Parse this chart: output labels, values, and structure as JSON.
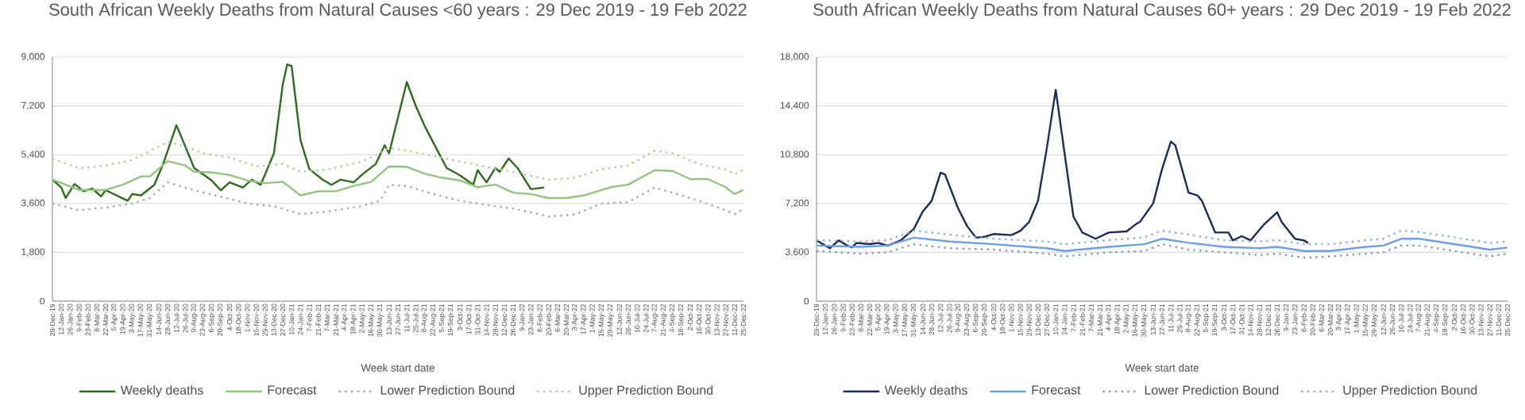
{
  "chart_data": [
    {
      "type": "line",
      "title": "South African Weekly Deaths from Natural Causes  <60 years : 29 Dec 2019 - 19 Feb 2022",
      "xlabel": "Week start date",
      "xlim": [
        "2019-12-29",
        "2022-12-25"
      ],
      "ylim": [
        0,
        9000
      ],
      "yticks": [
        0,
        {
          "value": 1800,
          "label": "1,800"
        },
        {
          "value": 3600,
          "label": "3,600"
        },
        {
          "value": 5400,
          "label": "5,400"
        },
        {
          "value": 7200,
          "label": "7,200"
        },
        {
          "value": 9000,
          "label": "9,000"
        }
      ],
      "xticks": [
        {
          "value": "2019-12-29",
          "label": "29-Dec-19"
        },
        {
          "value": "2020-01-12",
          "label": "12-Jan-20"
        },
        {
          "value": "2020-01-26",
          "label": "26-Jan-20"
        },
        {
          "value": "2020-02-09",
          "label": "9-Feb-20"
        },
        {
          "value": "2020-02-23",
          "label": "23-Feb-20"
        },
        {
          "value": "2020-03-08",
          "label": "8-Mar-20"
        },
        {
          "value": "2020-03-22",
          "label": "22-Mar-20"
        },
        {
          "value": "2020-04-05",
          "label": "5-Apr-20"
        },
        {
          "value": "2020-04-19",
          "label": "19-Apr-20"
        },
        {
          "value": "2020-05-03",
          "label": "3-May-20"
        },
        {
          "value": "2020-05-17",
          "label": "17-May-20"
        },
        {
          "value": "2020-05-31",
          "label": "31-May-20"
        },
        {
          "value": "2020-06-14",
          "label": "14-Jun-20"
        },
        {
          "value": "2020-06-28",
          "label": "28-Jun-20"
        },
        {
          "value": "2020-07-12",
          "label": "12-Jul-20"
        },
        {
          "value": "2020-07-26",
          "label": "26-Jul-20"
        },
        {
          "value": "2020-08-09",
          "label": "9-Aug-20"
        },
        {
          "value": "2020-08-23",
          "label": "23-Aug-20"
        },
        {
          "value": "2020-09-06",
          "label": "6-Sep-20"
        },
        {
          "value": "2020-09-20",
          "label": "20-Sep-20"
        },
        {
          "value": "2020-10-04",
          "label": "4-Oct-20"
        },
        {
          "value": "2020-10-18",
          "label": "18-Oct-20"
        },
        {
          "value": "2020-11-01",
          "label": "1-Nov-20"
        },
        {
          "value": "2020-11-15",
          "label": "15-Nov-20"
        },
        {
          "value": "2020-11-29",
          "label": "29-Nov-20"
        },
        {
          "value": "2020-12-13",
          "label": "13-Dec-20"
        },
        {
          "value": "2020-12-27",
          "label": "27-Dec-20"
        },
        {
          "value": "2021-01-10",
          "label": "10-Jan-21"
        },
        {
          "value": "2021-01-24",
          "label": "24-Jan-21"
        },
        {
          "value": "2021-02-07",
          "label": "7-Feb-21"
        },
        {
          "value": "2021-02-21",
          "label": "21-Feb-21"
        },
        {
          "value": "2021-03-07",
          "label": "7-Mar-21"
        },
        {
          "value": "2021-03-21",
          "label": "21-Mar-21"
        },
        {
          "value": "2021-04-04",
          "label": "4-Apr-21"
        },
        {
          "value": "2021-04-18",
          "label": "18-Apr-21"
        },
        {
          "value": "2021-05-02",
          "label": "2-May-21"
        },
        {
          "value": "2021-05-16",
          "label": "16-May-21"
        },
        {
          "value": "2021-05-30",
          "label": "30-May-21"
        },
        {
          "value": "2021-06-13",
          "label": "13-Jun-21"
        },
        {
          "value": "2021-06-27",
          "label": "27-Jun-21"
        },
        {
          "value": "2021-07-11",
          "label": "11-Jul-21"
        },
        {
          "value": "2021-07-25",
          "label": "25-Jul-21"
        },
        {
          "value": "2021-08-08",
          "label": "8-Aug-21"
        },
        {
          "value": "2021-08-22",
          "label": "22-Aug-21"
        },
        {
          "value": "2021-09-05",
          "label": "5-Sep-21"
        },
        {
          "value": "2021-09-19",
          "label": "19-Sep-21"
        },
        {
          "value": "2021-10-03",
          "label": "3-Oct-21"
        },
        {
          "value": "2021-10-17",
          "label": "17-Oct-21"
        },
        {
          "value": "2021-10-31",
          "label": "31-Oct-21"
        },
        {
          "value": "2021-11-14",
          "label": "14-Nov-21"
        },
        {
          "value": "2021-11-28",
          "label": "28-Nov-21"
        },
        {
          "value": "2021-12-12",
          "label": "12-Dec-21"
        },
        {
          "value": "2021-12-26",
          "label": "26-Dec-21"
        },
        {
          "value": "2022-01-09",
          "label": "9-Jan-22"
        },
        {
          "value": "2022-01-23",
          "label": "23-Jan-22"
        },
        {
          "value": "2022-02-06",
          "label": "6-Feb-22"
        },
        {
          "value": "2022-02-20",
          "label": "20-Feb-22"
        },
        {
          "value": "2022-03-06",
          "label": "6-Mar-22"
        },
        {
          "value": "2022-03-20",
          "label": "20-Mar-22"
        },
        {
          "value": "2022-04-03",
          "label": "3-Apr-22"
        },
        {
          "value": "2022-04-17",
          "label": "17-Apr-22"
        },
        {
          "value": "2022-05-01",
          "label": "1-May-22"
        },
        {
          "value": "2022-05-15",
          "label": "15-May-22"
        },
        {
          "value": "2022-05-29",
          "label": "29-May-22"
        },
        {
          "value": "2022-06-12",
          "label": "12-Jun-22"
        },
        {
          "value": "2022-06-26",
          "label": "26-Jun-22"
        },
        {
          "value": "2022-07-10",
          "label": "10-Jul-22"
        },
        {
          "value": "2022-07-24",
          "label": "24-Jul-22"
        },
        {
          "value": "2022-08-07",
          "label": "7-Aug-22"
        },
        {
          "value": "2022-08-21",
          "label": "21-Aug-22"
        },
        {
          "value": "2022-09-04",
          "label": "4-Sep-22"
        },
        {
          "value": "2022-09-18",
          "label": "18-Sep-22"
        },
        {
          "value": "2022-10-02",
          "label": "2-Oct-22"
        },
        {
          "value": "2022-10-16",
          "label": "16-Oct-22"
        },
        {
          "value": "2022-10-30",
          "label": "30-Oct-22"
        },
        {
          "value": "2022-11-13",
          "label": "13-Nov-22"
        },
        {
          "value": "2022-11-27",
          "label": "27-Nov-22"
        },
        {
          "value": "2022-12-11",
          "label": "11-Dec-22"
        },
        {
          "value": "2022-12-25",
          "label": "25-Dec-22"
        }
      ],
      "grid": "y",
      "legend": "bottom",
      "marker": "none",
      "series": [
        {
          "name": "Weekly deaths",
          "color": "#2e6b1f",
          "line_style": "solid",
          "x": [
            "2019-12-29",
            "2020-01-12",
            "2020-01-19",
            "2020-02-02",
            "2020-02-16",
            "2020-03-01",
            "2020-03-15",
            "2020-03-22",
            "2020-04-26",
            "2020-05-03",
            "2020-05-17",
            "2020-06-07",
            "2020-06-21",
            "2020-07-12",
            "2020-08-09",
            "2020-09-06",
            "2020-09-20",
            "2020-10-04",
            "2020-10-25",
            "2020-11-08",
            "2020-11-22",
            "2020-12-06",
            "2020-12-13",
            "2020-12-27",
            "2021-01-03",
            "2021-01-10",
            "2021-01-24",
            "2021-02-07",
            "2021-02-28",
            "2021-03-14",
            "2021-03-28",
            "2021-04-18",
            "2021-05-02",
            "2021-05-23",
            "2021-06-06",
            "2021-06-13",
            "2021-07-11",
            "2021-07-25",
            "2021-08-08",
            "2021-08-22",
            "2021-09-12",
            "2021-10-03",
            "2021-10-24",
            "2021-10-31",
            "2021-11-14",
            "2021-11-28",
            "2021-12-05",
            "2021-12-19",
            "2022-01-02",
            "2022-01-23",
            "2022-02-13"
          ],
          "values": [
            4480,
            4190,
            3800,
            4320,
            4050,
            4150,
            3860,
            4090,
            3700,
            3950,
            3900,
            4290,
            5060,
            6490,
            4910,
            4440,
            4090,
            4380,
            4190,
            4480,
            4290,
            5060,
            5450,
            7990,
            8730,
            8670,
            5940,
            4870,
            4480,
            4290,
            4480,
            4380,
            4680,
            5060,
            5750,
            5450,
            8080,
            7210,
            6470,
            5840,
            4910,
            4640,
            4290,
            4830,
            4380,
            4910,
            4770,
            5260,
            4910,
            4130,
            4190
          ]
        },
        {
          "name": "Forecast",
          "color": "#93c47d",
          "line_style": "solid",
          "x": [
            "2019-12-29",
            "2020-02-09",
            "2020-03-22",
            "2020-04-19",
            "2020-05-17",
            "2020-05-31",
            "2020-06-28",
            "2020-07-26",
            "2020-08-09",
            "2020-09-06",
            "2020-10-04",
            "2020-11-01",
            "2020-11-29",
            "2020-12-27",
            "2021-01-24",
            "2021-02-21",
            "2021-03-21",
            "2021-04-18",
            "2021-05-16",
            "2021-06-13",
            "2021-07-11",
            "2021-08-08",
            "2021-09-05",
            "2021-10-03",
            "2021-10-31",
            "2021-11-28",
            "2021-12-26",
            "2022-01-23",
            "2022-02-20",
            "2022-03-20",
            "2022-04-17",
            "2022-05-29",
            "2022-06-26",
            "2022-08-07",
            "2022-09-04",
            "2022-10-02",
            "2022-10-30",
            "2022-11-27",
            "2022-12-11",
            "2022-12-25"
          ],
          "values": [
            4480,
            4100,
            4100,
            4300,
            4600,
            4600,
            5160,
            5000,
            4770,
            4750,
            4650,
            4450,
            4350,
            4400,
            3900,
            4050,
            4050,
            4250,
            4400,
            4970,
            4950,
            4700,
            4550,
            4450,
            4200,
            4300,
            4000,
            3950,
            3800,
            3800,
            3900,
            4200,
            4300,
            4830,
            4800,
            4500,
            4500,
            4200,
            3950,
            4100
          ]
        },
        {
          "name": "Lower Prediction Bound",
          "color": "#a6a6a6",
          "line_style": "dotted",
          "x": [
            "2019-12-29",
            "2020-02-09",
            "2020-03-22",
            "2020-05-03",
            "2020-05-31",
            "2020-06-28",
            "2020-08-09",
            "2020-09-20",
            "2020-11-01",
            "2020-12-13",
            "2021-01-24",
            "2021-03-07",
            "2021-05-02",
            "2021-05-30",
            "2021-06-13",
            "2021-07-11",
            "2021-08-22",
            "2021-10-03",
            "2021-11-14",
            "2021-12-26",
            "2022-02-06",
            "2022-02-20",
            "2022-04-03",
            "2022-05-15",
            "2022-06-26",
            "2022-08-07",
            "2022-09-04",
            "2022-10-16",
            "2022-11-27",
            "2022-12-11",
            "2022-12-25"
          ],
          "values": [
            3600,
            3350,
            3450,
            3600,
            3800,
            4380,
            4090,
            3850,
            3600,
            3500,
            3210,
            3300,
            3510,
            3700,
            4290,
            4250,
            3950,
            3700,
            3550,
            3410,
            3200,
            3120,
            3200,
            3600,
            3650,
            4190,
            4000,
            3700,
            3350,
            3210,
            3410
          ]
        },
        {
          "name": "Upper Prediction Bound",
          "color": "#a9d18e",
          "line_style": "dotted",
          "x": [
            "2019-12-29",
            "2020-02-09",
            "2020-03-22",
            "2020-05-03",
            "2020-06-14",
            "2020-06-28",
            "2020-07-26",
            "2020-08-23",
            "2020-10-04",
            "2020-11-15",
            "2020-12-27",
            "2021-01-24",
            "2021-03-07",
            "2021-05-02",
            "2021-05-30",
            "2021-06-13",
            "2021-07-11",
            "2021-08-22",
            "2021-10-03",
            "2021-11-14",
            "2021-12-26",
            "2022-02-06",
            "2022-02-20",
            "2022-04-03",
            "2022-05-15",
            "2022-06-26",
            "2022-08-07",
            "2022-09-04",
            "2022-10-16",
            "2022-11-27",
            "2022-12-11",
            "2022-12-25"
          ],
          "values": [
            5260,
            4900,
            5000,
            5200,
            5700,
            5880,
            5700,
            5450,
            5300,
            4970,
            5060,
            4770,
            4850,
            5150,
            5450,
            5650,
            5550,
            5350,
            5150,
            4950,
            4770,
            4550,
            4480,
            4550,
            4870,
            5000,
            5550,
            5450,
            5060,
            4850,
            4680,
            4830
          ]
        }
      ]
    },
    {
      "type": "line",
      "title": "South African Weekly Deaths from Natural Causes 60+ years : 29 Dec 2019 -  19 Feb 2022",
      "xlabel": "Week start date",
      "xlim": [
        "2019-12-29",
        "2022-12-25"
      ],
      "ylim": [
        0,
        18000
      ],
      "yticks": [
        0,
        {
          "value": 3600,
          "label": "3,600"
        },
        {
          "value": 7200,
          "label": "7,200"
        },
        {
          "value": 10800,
          "label": "10,800"
        },
        {
          "value": 14400,
          "label": "14,400"
        },
        {
          "value": 18000,
          "label": "18,000"
        }
      ],
      "xticks": [
        {
          "value": "2019-12-29",
          "label": "29-Dec-19"
        },
        {
          "value": "2020-01-12",
          "label": "12-Jan-20"
        },
        {
          "value": "2020-01-26",
          "label": "26-Jan-20"
        },
        {
          "value": "2020-02-09",
          "label": "9-Feb-20"
        },
        {
          "value": "2020-02-23",
          "label": "23-Feb-20"
        },
        {
          "value": "2020-03-08",
          "label": "8-Mar-20"
        },
        {
          "value": "2020-03-22",
          "label": "22-Mar-20"
        },
        {
          "value": "2020-04-05",
          "label": "5-Apr-20"
        },
        {
          "value": "2020-04-19",
          "label": "19-Apr-20"
        },
        {
          "value": "2020-05-03",
          "label": "3-May-20"
        },
        {
          "value": "2020-05-17",
          "label": "17-May-20"
        },
        {
          "value": "2020-05-31",
          "label": "31-May-20"
        },
        {
          "value": "2020-06-14",
          "label": "14-Jun-20"
        },
        {
          "value": "2020-06-28",
          "label": "28-Jun-20"
        },
        {
          "value": "2020-07-12",
          "label": "12-Jul-20"
        },
        {
          "value": "2020-07-26",
          "label": "26-Jul-20"
        },
        {
          "value": "2020-08-09",
          "label": "9-Aug-20"
        },
        {
          "value": "2020-08-23",
          "label": "23-Aug-20"
        },
        {
          "value": "2020-09-06",
          "label": "6-Sep-20"
        },
        {
          "value": "2020-09-20",
          "label": "20-Sep-20"
        },
        {
          "value": "2020-10-04",
          "label": "4-Oct-20"
        },
        {
          "value": "2020-10-18",
          "label": "18-Oct-20"
        },
        {
          "value": "2020-11-01",
          "label": "1-Nov-20"
        },
        {
          "value": "2020-11-15",
          "label": "15-Nov-20"
        },
        {
          "value": "2020-11-29",
          "label": "29-Nov-20"
        },
        {
          "value": "2020-12-13",
          "label": "13-Dec-20"
        },
        {
          "value": "2020-12-27",
          "label": "27-Dec-20"
        },
        {
          "value": "2021-01-10",
          "label": "10-Jan-21"
        },
        {
          "value": "2021-01-24",
          "label": "24-Jan-21"
        },
        {
          "value": "2021-02-07",
          "label": "7-Feb-21"
        },
        {
          "value": "2021-02-21",
          "label": "21-Feb-21"
        },
        {
          "value": "2021-03-07",
          "label": "7-Mar-21"
        },
        {
          "value": "2021-03-21",
          "label": "21-Mar-21"
        },
        {
          "value": "2021-04-04",
          "label": "4-Apr-21"
        },
        {
          "value": "2021-04-18",
          "label": "18-Apr-21"
        },
        {
          "value": "2021-05-02",
          "label": "2-May-21"
        },
        {
          "value": "2021-05-16",
          "label": "16-May-21"
        },
        {
          "value": "2021-05-30",
          "label": "30-May-21"
        },
        {
          "value": "2021-06-13",
          "label": "13-Jun-21"
        },
        {
          "value": "2021-06-27",
          "label": "27-Jun-21"
        },
        {
          "value": "2021-07-11",
          "label": "11-Jul-21"
        },
        {
          "value": "2021-07-25",
          "label": "25-Jul-21"
        },
        {
          "value": "2021-08-08",
          "label": "8-Aug-21"
        },
        {
          "value": "2021-08-22",
          "label": "22-Aug-21"
        },
        {
          "value": "2021-09-05",
          "label": "5-Sep-21"
        },
        {
          "value": "2021-09-19",
          "label": "19-Sep-21"
        },
        {
          "value": "2021-10-03",
          "label": "3-Oct-21"
        },
        {
          "value": "2021-10-17",
          "label": "17-Oct-21"
        },
        {
          "value": "2021-10-31",
          "label": "31-Oct-21"
        },
        {
          "value": "2021-11-14",
          "label": "14-Nov-21"
        },
        {
          "value": "2021-11-28",
          "label": "28-Nov-21"
        },
        {
          "value": "2021-12-12",
          "label": "12-Dec-21"
        },
        {
          "value": "2021-12-26",
          "label": "26-Dec-21"
        },
        {
          "value": "2022-01-09",
          "label": "9-Jan-22"
        },
        {
          "value": "2022-01-23",
          "label": "23-Jan-22"
        },
        {
          "value": "2022-02-06",
          "label": "6-Feb-22"
        },
        {
          "value": "2022-02-20",
          "label": "20-Feb-22"
        },
        {
          "value": "2022-03-06",
          "label": "6-Mar-22"
        },
        {
          "value": "2022-03-20",
          "label": "20-Mar-22"
        },
        {
          "value": "2022-04-03",
          "label": "3-Apr-22"
        },
        {
          "value": "2022-04-17",
          "label": "17-Apr-22"
        },
        {
          "value": "2022-05-01",
          "label": "1-May-22"
        },
        {
          "value": "2022-05-15",
          "label": "15-May-22"
        },
        {
          "value": "2022-05-29",
          "label": "29-May-22"
        },
        {
          "value": "2022-06-12",
          "label": "12-Jun-22"
        },
        {
          "value": "2022-06-26",
          "label": "26-Jun-22"
        },
        {
          "value": "2022-07-10",
          "label": "10-Jul-22"
        },
        {
          "value": "2022-07-24",
          "label": "24-Jul-22"
        },
        {
          "value": "2022-08-07",
          "label": "7-Aug-22"
        },
        {
          "value": "2022-08-21",
          "label": "21-Aug-22"
        },
        {
          "value": "2022-09-04",
          "label": "4-Sep-22"
        },
        {
          "value": "2022-09-18",
          "label": "18-Sep-22"
        },
        {
          "value": "2022-10-02",
          "label": "2-Oct-22"
        },
        {
          "value": "2022-10-16",
          "label": "16-Oct-22"
        },
        {
          "value": "2022-10-30",
          "label": "30-Oct-22"
        },
        {
          "value": "2022-11-13",
          "label": "13-Nov-22"
        },
        {
          "value": "2022-11-27",
          "label": "27-Nov-22"
        },
        {
          "value": "2022-12-11",
          "label": "11-Dec-22"
        },
        {
          "value": "2022-12-25",
          "label": "25-Dec-22"
        }
      ],
      "grid": "y",
      "legend": "bottom",
      "marker": "none",
      "series": [
        {
          "name": "Weekly deaths",
          "color": "#1c2b59",
          "line_style": "solid",
          "x": [
            "2019-12-29",
            "2020-01-19",
            "2020-02-02",
            "2020-02-16",
            "2020-02-23",
            "2020-03-01",
            "2020-03-22",
            "2020-04-05",
            "2020-04-19",
            "2020-05-10",
            "2020-05-31",
            "2020-06-14",
            "2020-06-28",
            "2020-07-12",
            "2020-07-19",
            "2020-08-09",
            "2020-08-23",
            "2020-09-06",
            "2020-09-20",
            "2020-10-04",
            "2020-11-01",
            "2020-11-15",
            "2020-11-29",
            "2020-12-13",
            "2020-12-27",
            "2021-01-10",
            "2021-01-24",
            "2021-02-07",
            "2021-02-21",
            "2021-03-14",
            "2021-04-04",
            "2021-05-02",
            "2021-05-16",
            "2021-05-23",
            "2021-06-13",
            "2021-06-27",
            "2021-07-11",
            "2021-07-18",
            "2021-08-08",
            "2021-08-22",
            "2021-08-29",
            "2021-09-19",
            "2021-10-10",
            "2021-10-17",
            "2021-10-31",
            "2021-11-14",
            "2021-12-05",
            "2021-12-26",
            "2022-01-02",
            "2022-01-23",
            "2022-02-06",
            "2022-02-13"
          ],
          "values": [
            4480,
            3900,
            4480,
            4090,
            3970,
            4290,
            4210,
            4290,
            4090,
            4480,
            5340,
            6620,
            7400,
            9470,
            9350,
            6820,
            5530,
            4680,
            4750,
            4950,
            4870,
            5180,
            5840,
            7400,
            11300,
            15580,
            10900,
            6230,
            5060,
            4600,
            5060,
            5140,
            5650,
            5840,
            7210,
            9740,
            11770,
            11490,
            8000,
            7800,
            7400,
            5060,
            5060,
            4480,
            4790,
            4480,
            5650,
            6550,
            5840,
            4600,
            4480,
            4290
          ]
        },
        {
          "name": "Forecast",
          "color": "#6d9eeb",
          "line_style": "solid",
          "x": [
            "2019-12-29",
            "2020-03-08",
            "2020-04-19",
            "2020-05-31",
            "2020-07-26",
            "2020-10-04",
            "2020-12-27",
            "2021-01-24",
            "2021-04-04",
            "2021-05-30",
            "2021-06-27",
            "2021-08-08",
            "2021-10-03",
            "2021-11-28",
            "2021-12-26",
            "2022-02-06",
            "2022-03-20",
            "2022-05-15",
            "2022-06-12",
            "2022-07-10",
            "2022-08-07",
            "2022-09-18",
            "2022-10-30",
            "2022-11-27",
            "2022-12-25"
          ],
          "values": [
            4100,
            4000,
            4100,
            4680,
            4400,
            4200,
            3900,
            3700,
            4000,
            4200,
            4600,
            4300,
            4000,
            3900,
            4000,
            3700,
            3700,
            4000,
            4100,
            4600,
            4600,
            4300,
            4000,
            3800,
            3950
          ]
        },
        {
          "name": "Lower Prediction Bound",
          "color": "#8497b0",
          "line_style": "dotted",
          "x": [
            "2019-12-29",
            "2020-03-08",
            "2020-04-19",
            "2020-05-31",
            "2020-07-26",
            "2020-10-04",
            "2020-12-27",
            "2021-01-24",
            "2021-04-04",
            "2021-05-30",
            "2021-06-27",
            "2021-08-08",
            "2021-10-03",
            "2021-11-28",
            "2021-12-26",
            "2022-02-06",
            "2022-03-20",
            "2022-05-15",
            "2022-06-12",
            "2022-07-10",
            "2022-08-07",
            "2022-09-18",
            "2022-10-30",
            "2022-11-27",
            "2022-12-25"
          ],
          "values": [
            3700,
            3500,
            3600,
            4200,
            3900,
            3800,
            3500,
            3300,
            3600,
            3700,
            4200,
            3800,
            3600,
            3400,
            3500,
            3200,
            3300,
            3500,
            3600,
            4100,
            4100,
            3800,
            3500,
            3300,
            3500
          ]
        },
        {
          "name": "Upper Prediction Bound",
          "color": "#8eaadb",
          "line_style": "dotted",
          "x": [
            "2019-12-29",
            "2020-03-08",
            "2020-04-19",
            "2020-05-31",
            "2020-07-26",
            "2020-10-04",
            "2020-12-27",
            "2021-01-24",
            "2021-04-04",
            "2021-05-30",
            "2021-06-27",
            "2021-08-08",
            "2021-10-03",
            "2021-11-28",
            "2021-12-26",
            "2022-02-06",
            "2022-03-20",
            "2022-05-15",
            "2022-06-12",
            "2022-07-10",
            "2022-08-07",
            "2022-09-18",
            "2022-10-30",
            "2022-11-27",
            "2022-12-25"
          ],
          "values": [
            4500,
            4400,
            4500,
            5200,
            4900,
            4600,
            4400,
            4200,
            4500,
            4700,
            5200,
            4900,
            4500,
            4400,
            4500,
            4200,
            4200,
            4500,
            4600,
            5200,
            5100,
            4800,
            4500,
            4300,
            4400
          ]
        }
      ]
    }
  ]
}
